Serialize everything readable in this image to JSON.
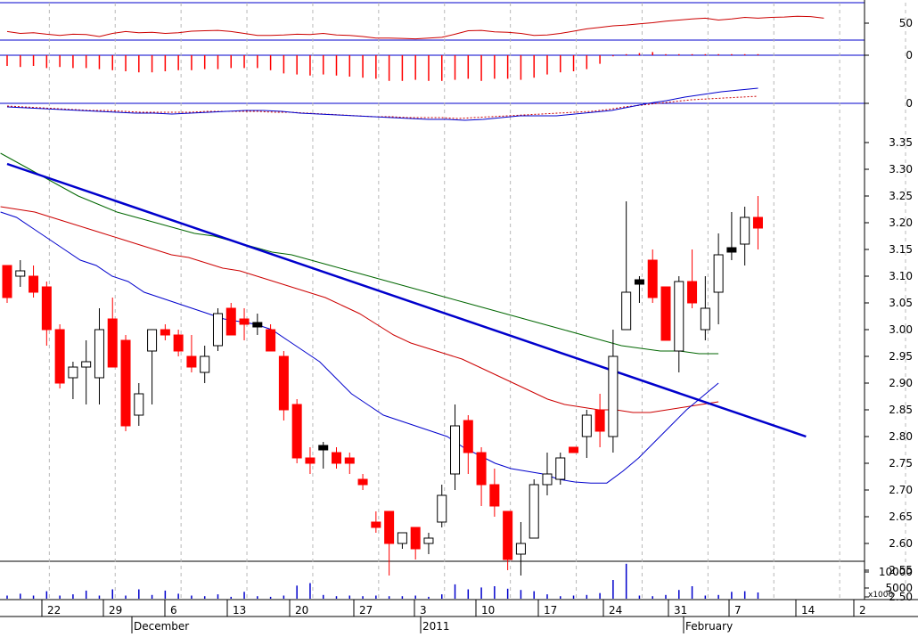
{
  "chart_data": {
    "type": "candlestick",
    "x_tick_labels": [
      "22",
      "29",
      "6",
      "13",
      "20",
      "27",
      "3",
      "10",
      "17",
      "24",
      "31",
      "7",
      "14",
      "2"
    ],
    "month_labels": [
      "December",
      "2011",
      "February"
    ],
    "price_axis": {
      "ylim": [
        2.47,
        3.38
      ],
      "ticks": [
        "3.35",
        "3.30",
        "3.25",
        "3.20",
        "3.15",
        "3.10",
        "3.05",
        "3.00",
        "2.95",
        "2.90",
        "2.85",
        "2.80",
        "2.75",
        "2.70",
        "2.65",
        "2.60",
        "2.55",
        "2.50"
      ]
    },
    "indicator_ticks": [
      "50",
      "0",
      "0"
    ],
    "volume_axis": {
      "ticks": [
        "10000",
        "5000"
      ],
      "multiplier_label": "x1000"
    },
    "colors": {
      "up": "#ffffff",
      "down": "#ff0000",
      "flat": "#000000",
      "axis": "#0000cc",
      "ma_short": "#0000cc",
      "ma_mid": "#cc0000",
      "ma_long": "#006600",
      "trend": "#0000cc"
    },
    "candles": [
      [
        3.12,
        3.12,
        3.05,
        3.06
      ],
      [
        3.1,
        3.13,
        3.08,
        3.11
      ],
      [
        3.1,
        3.12,
        3.06,
        3.07
      ],
      [
        3.08,
        3.09,
        2.97,
        3.0
      ],
      [
        3.0,
        3.01,
        2.89,
        2.9
      ],
      [
        2.91,
        2.94,
        2.87,
        2.93
      ],
      [
        2.93,
        2.98,
        2.86,
        2.94
      ],
      [
        2.91,
        3.04,
        2.86,
        3.0
      ],
      [
        3.02,
        3.06,
        2.93,
        2.93
      ],
      [
        2.98,
        2.99,
        2.81,
        2.82
      ],
      [
        2.84,
        2.9,
        2.82,
        2.88
      ],
      [
        2.96,
        3.0,
        2.86,
        3.0
      ],
      [
        3.0,
        3.01,
        2.98,
        2.99
      ],
      [
        2.99,
        3.0,
        2.95,
        2.96
      ],
      [
        2.95,
        2.99,
        2.92,
        2.93
      ],
      [
        2.92,
        2.97,
        2.9,
        2.95
      ],
      [
        2.97,
        3.04,
        2.96,
        3.03
      ],
      [
        3.04,
        3.05,
        2.99,
        2.99
      ],
      [
        3.02,
        3.04,
        2.98,
        3.01
      ],
      [
        3.01,
        3.03,
        2.99,
        3.01
      ],
      [
        3.0,
        3.01,
        2.96,
        2.96
      ],
      [
        2.95,
        2.96,
        2.83,
        2.85
      ],
      [
        2.86,
        2.87,
        2.75,
        2.76
      ],
      [
        2.76,
        2.78,
        2.73,
        2.75
      ],
      [
        2.78,
        2.79,
        2.74,
        2.78
      ],
      [
        2.77,
        2.78,
        2.74,
        2.75
      ],
      [
        2.76,
        2.77,
        2.73,
        2.75
      ],
      [
        2.72,
        2.73,
        2.7,
        2.71
      ],
      [
        2.64,
        2.66,
        2.62,
        2.63
      ],
      [
        2.66,
        2.66,
        2.54,
        2.6
      ],
      [
        2.6,
        2.62,
        2.59,
        2.62
      ],
      [
        2.63,
        2.63,
        2.57,
        2.59
      ],
      [
        2.6,
        2.62,
        2.58,
        2.61
      ],
      [
        2.64,
        2.71,
        2.63,
        2.69
      ],
      [
        2.73,
        2.86,
        2.7,
        2.82
      ],
      [
        2.83,
        2.84,
        2.73,
        2.77
      ],
      [
        2.77,
        2.78,
        2.67,
        2.71
      ],
      [
        2.71,
        2.74,
        2.65,
        2.67
      ],
      [
        2.66,
        2.66,
        2.55,
        2.57
      ],
      [
        2.58,
        2.64,
        2.54,
        2.6
      ],
      [
        2.61,
        2.72,
        2.61,
        2.71
      ],
      [
        2.71,
        2.77,
        2.69,
        2.73
      ],
      [
        2.72,
        2.77,
        2.71,
        2.76
      ],
      [
        2.78,
        2.78,
        2.77,
        2.77
      ],
      [
        2.8,
        2.85,
        2.76,
        2.84
      ],
      [
        2.85,
        2.88,
        2.78,
        2.81
      ],
      [
        2.8,
        3.0,
        2.77,
        2.95
      ],
      [
        3.0,
        3.24,
        3.0,
        3.07
      ],
      [
        3.09,
        3.1,
        3.05,
        3.09
      ],
      [
        3.13,
        3.15,
        3.05,
        3.06
      ],
      [
        3.08,
        3.08,
        2.98,
        2.98
      ],
      [
        2.96,
        3.1,
        2.92,
        3.09
      ],
      [
        3.09,
        3.15,
        3.04,
        3.05
      ],
      [
        3.0,
        3.1,
        2.98,
        3.04
      ],
      [
        3.07,
        3.18,
        3.01,
        3.14
      ],
      [
        3.15,
        3.22,
        3.13,
        3.15
      ],
      [
        3.16,
        3.23,
        3.12,
        3.21
      ],
      [
        3.21,
        3.25,
        3.15,
        3.19
      ]
    ],
    "volume": [
      0.5,
      0.8,
      0.5,
      1.2,
      0.5,
      0.7,
      1.3,
      0.5,
      1.5,
      0.5,
      1.5,
      0.6,
      1.3,
      0.8,
      0.5,
      0.4,
      0.7,
      0.3,
      1.1,
      0.4,
      0.3,
      0.5,
      2.1,
      2.5,
      0.6,
      0.4,
      0.5,
      0.4,
      0.5,
      0.4,
      0.4,
      0.5,
      0.3,
      0.7,
      2.3,
      1.5,
      1.8,
      2.0,
      1.6,
      1.4,
      1.2,
      0.7,
      0.4,
      0.5,
      0.6,
      0.9,
      3.0,
      5.6,
      0.5,
      0.4,
      0.6,
      1.4,
      2.0,
      0.5,
      0.6,
      1.1,
      1.2,
      1.0
    ],
    "ma_short": [
      3.22,
      3.21,
      3.19,
      3.17,
      3.15,
      3.13,
      3.12,
      3.1,
      3.09,
      3.07,
      3.06,
      3.05,
      3.04,
      3.03,
      3.02,
      3.015,
      3.01,
      3.0,
      2.98,
      2.96,
      2.94,
      2.91,
      2.88,
      2.86,
      2.84,
      2.83,
      2.82,
      2.81,
      2.8,
      2.78,
      2.765,
      2.75,
      2.74,
      2.735,
      2.73,
      2.72,
      2.715,
      2.713,
      2.713,
      2.735,
      2.76,
      2.79,
      2.82,
      2.85,
      2.875,
      2.9
    ],
    "ma_mid": [
      3.23,
      3.225,
      3.22,
      3.21,
      3.2,
      3.19,
      3.18,
      3.17,
      3.16,
      3.15,
      3.14,
      3.135,
      3.125,
      3.115,
      3.11,
      3.1,
      3.09,
      3.08,
      3.07,
      3.06,
      3.045,
      3.03,
      3.01,
      2.99,
      2.975,
      2.965,
      2.955,
      2.945,
      2.93,
      2.915,
      2.9,
      2.885,
      2.87,
      2.86,
      2.855,
      2.85,
      2.85,
      2.845,
      2.845,
      2.85,
      2.855,
      2.86,
      2.865
    ],
    "ma_long": [
      3.33,
      3.31,
      3.29,
      3.27,
      3.25,
      3.235,
      3.22,
      3.21,
      3.2,
      3.19,
      3.18,
      3.175,
      3.165,
      3.155,
      3.145,
      3.14,
      3.13,
      3.12,
      3.11,
      3.1,
      3.09,
      3.08,
      3.07,
      3.06,
      3.05,
      3.04,
      3.03,
      3.02,
      3.01,
      3.0,
      2.99,
      2.98,
      2.97,
      2.965,
      2.96,
      2.96,
      2.955,
      2.955
    ],
    "trendline": {
      "from": [
        0,
        3.31
      ],
      "to": [
        62,
        2.8
      ]
    },
    "oscillator_mid": [
      55,
      50,
      52,
      48,
      45,
      48,
      47,
      42,
      50,
      55,
      52,
      53,
      50,
      52,
      56,
      57,
      58,
      55,
      50,
      45,
      45,
      46,
      48,
      47,
      50,
      46,
      45,
      42,
      38,
      38,
      37,
      36,
      38,
      40,
      48,
      57,
      58,
      54,
      53,
      50,
      45,
      46,
      50,
      56,
      62,
      66,
      70,
      72,
      75,
      78,
      82,
      85,
      88,
      90,
      85,
      88,
      92,
      90,
      92,
      93,
      95,
      94,
      90
    ],
    "histogram": [
      -10,
      -11,
      -10,
      -12,
      -11,
      -12,
      -12,
      -13,
      -14,
      -15,
      -16,
      -16,
      -15,
      -14,
      -14,
      -13,
      -13,
      -12,
      -12,
      -12,
      -14,
      -17,
      -18,
      -19,
      -18,
      -19,
      -20,
      -21,
      -22,
      -24,
      -24,
      -23,
      -24,
      -24,
      -23,
      -22,
      -24,
      -22,
      -22,
      -23,
      -21,
      -18,
      -16,
      -15,
      -13,
      -8,
      -1,
      1,
      2,
      3,
      1,
      1,
      1,
      1,
      1,
      1,
      1,
      1
    ],
    "macd_signal": [
      -1,
      -2,
      -3,
      -4,
      -5,
      -6,
      -6,
      -7,
      -8,
      -8,
      -8,
      -8,
      -7,
      -7,
      -7,
      -7,
      -8,
      -8,
      -9,
      -10,
      -11,
      -12,
      -13,
      -13,
      -14,
      -14,
      -14,
      -15,
      -14,
      -13,
      -12,
      -11,
      -10,
      -9,
      -8,
      -7,
      -5,
      -2,
      0,
      2,
      4,
      6,
      7,
      8,
      9,
      10
    ],
    "macd_line": [
      -2,
      -3,
      -4,
      -5,
      -6,
      -7,
      -8,
      -9,
      -9,
      -10,
      -9,
      -8,
      -7,
      -6,
      -6,
      -7,
      -9,
      -10,
      -11,
      -12,
      -13,
      -14,
      -15,
      -16,
      -16,
      -17,
      -16,
      -14,
      -12,
      -12,
      -12,
      -10,
      -8,
      -6,
      -2,
      2,
      5,
      9,
      12,
      15,
      17,
      19
    ]
  }
}
